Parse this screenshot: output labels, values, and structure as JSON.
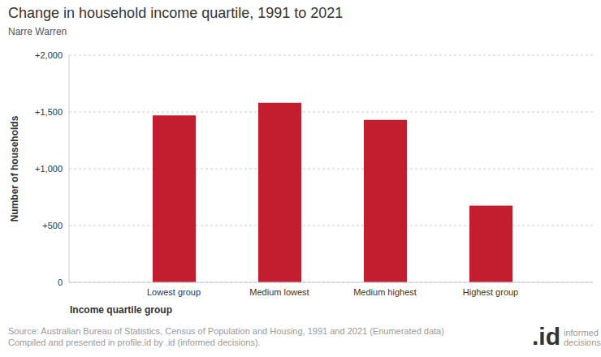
{
  "chart_data": {
    "type": "bar",
    "title": "Change in household income quartile, 1991 to 2021",
    "subtitle": "Narre Warren",
    "x_label": "Income quartile group",
    "y_label": "Number of households",
    "categories": [
      "Lowest group",
      "Medium lowest",
      "Medium highest",
      "Highest group"
    ],
    "values": [
      1470,
      1580,
      1430,
      675
    ],
    "color": "#c21e2f",
    "ylim": [
      0,
      2000
    ],
    "yticks": [
      0,
      {
        "value": 500,
        "label": "+500"
      },
      {
        "value": 1000,
        "label": "+1,000"
      },
      {
        "value": 1500,
        "label": "+1,500"
      },
      {
        "value": 2000,
        "label": "+2,000"
      }
    ],
    "grid": true,
    "source": [
      "Source: Australian Bureau of Statistics, Census of Population and Housing, 1991 and 2021 (Enumerated data)",
      "Compiled and presented in profile.id by .id (informed decisions)."
    ],
    "logo": {
      "mark": ".id",
      "text": "informed decisions"
    }
  }
}
